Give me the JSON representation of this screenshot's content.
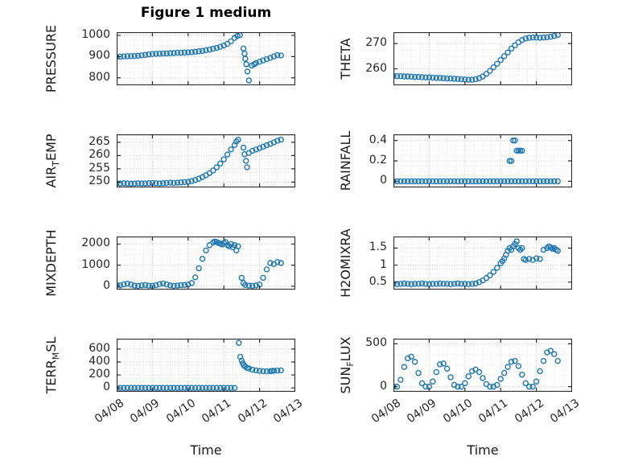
{
  "title": "Figure 1 medium",
  "accent_color": "#1f77b4",
  "x_axis": {
    "label": "Time",
    "lim": [
      0,
      5
    ],
    "ticks": [
      0,
      1,
      2,
      3,
      4,
      5
    ],
    "tick_labels": [
      "04/08",
      "04/09",
      "04/10",
      "04/11",
      "04/12",
      "04/13"
    ]
  },
  "chart_data": [
    {
      "type": "scatter",
      "name": "PRESSURE",
      "ylabel": {
        "pre": "PRESSURE",
        "sub": "",
        "post": ""
      },
      "ylim": [
        765,
        1015
      ],
      "yticks": [
        800,
        900,
        1000
      ],
      "ytick_labels": [
        "800",
        "900",
        "1000"
      ],
      "x": [
        0,
        0.1,
        0.2,
        0.3,
        0.4,
        0.5,
        0.6,
        0.7,
        0.8,
        0.9,
        1,
        1.1,
        1.2,
        1.3,
        1.4,
        1.5,
        1.6,
        1.7,
        1.8,
        1.9,
        2,
        2.1,
        2.2,
        2.3,
        2.4,
        2.5,
        2.6,
        2.7,
        2.8,
        2.9,
        3,
        3.1,
        3.2,
        3.3,
        3.38,
        3.45,
        3.55,
        3.58,
        3.6,
        3.63,
        3.66,
        3.7,
        3.78,
        3.85,
        3.9,
        4,
        4.1,
        4.2,
        4.3,
        4.4,
        4.5,
        4.6
      ],
      "y": [
        898,
        900,
        901,
        902,
        902,
        903,
        904,
        906,
        908,
        910,
        912,
        913,
        914,
        915,
        915,
        916,
        917,
        918,
        918,
        919,
        920,
        921,
        923,
        925,
        927,
        930,
        933,
        937,
        941,
        946,
        952,
        960,
        972,
        988,
        997,
        1001,
        938,
        914,
        890,
        864,
        830,
        788,
        858,
        864,
        870,
        876,
        882,
        888,
        894,
        901,
        907,
        905
      ]
    },
    {
      "type": "scatter",
      "name": "AIR_TEMP",
      "ylabel": {
        "pre": "AIR",
        "sub": "T",
        "post": "EMP"
      },
      "ylim": [
        248,
        268
      ],
      "yticks": [
        250,
        255,
        260,
        265
      ],
      "ytick_labels": [
        "250",
        "255",
        "260",
        "265"
      ],
      "x": [
        0,
        0.1,
        0.2,
        0.3,
        0.4,
        0.5,
        0.6,
        0.7,
        0.8,
        0.9,
        1,
        1.1,
        1.2,
        1.3,
        1.4,
        1.5,
        1.6,
        1.7,
        1.8,
        1.9,
        2,
        2.1,
        2.2,
        2.3,
        2.4,
        2.5,
        2.6,
        2.7,
        2.8,
        2.9,
        3,
        3.1,
        3.2,
        3.3,
        3.35,
        3.4,
        3.55,
        3.58,
        3.62,
        3.65,
        3.7,
        3.8,
        3.9,
        4,
        4.1,
        4.2,
        4.3,
        4.4,
        4.5,
        4.6
      ],
      "y": [
        249.6,
        249.5,
        249.6,
        249.5,
        249.4,
        249.5,
        249.6,
        249.5,
        249.5,
        249.6,
        249.7,
        249.6,
        249.5,
        249.6,
        249.7,
        249.8,
        249.7,
        249.8,
        249.9,
        250,
        250.1,
        250.4,
        250.8,
        251.3,
        251.9,
        252.6,
        253.4,
        254.4,
        255.6,
        257,
        258.6,
        260.4,
        262.3,
        264,
        265.3,
        266,
        263,
        260.5,
        258,
        255.6,
        261,
        261.8,
        262.3,
        262.8,
        263.3,
        263.9,
        264.4,
        265,
        265.6,
        266
      ]
    },
    {
      "type": "scatter",
      "name": "MIXDEPTH",
      "ylabel": {
        "pre": "MIXDEPTH",
        "sub": "",
        "post": ""
      },
      "ylim": [
        -160,
        2360
      ],
      "yticks": [
        0,
        1000,
        2000
      ],
      "ytick_labels": [
        "0",
        "1000",
        "2000"
      ],
      "x": [
        0,
        0.1,
        0.2,
        0.3,
        0.4,
        0.5,
        0.6,
        0.7,
        0.8,
        0.9,
        1,
        1.1,
        1.2,
        1.3,
        1.4,
        1.5,
        1.6,
        1.7,
        1.8,
        1.9,
        2,
        2.1,
        2.2,
        2.3,
        2.4,
        2.5,
        2.6,
        2.7,
        2.75,
        2.8,
        2.85,
        2.9,
        2.95,
        3,
        3.05,
        3.1,
        3.15,
        3.2,
        3.25,
        3.3,
        3.35,
        3.4,
        3.5,
        3.55,
        3.6,
        3.7,
        3.8,
        3.9,
        4,
        4.1,
        4.2,
        4.3,
        4.4,
        4.5,
        4.6
      ],
      "y": [
        60,
        40,
        90,
        120,
        80,
        30,
        20,
        40,
        60,
        30,
        20,
        50,
        100,
        130,
        90,
        40,
        20,
        30,
        50,
        60,
        80,
        150,
        420,
        850,
        1300,
        1700,
        1950,
        2080,
        2120,
        2100,
        2060,
        2020,
        1980,
        2050,
        2100,
        1950,
        1900,
        2000,
        1850,
        1950,
        1700,
        1900,
        400,
        150,
        60,
        30,
        20,
        40,
        80,
        400,
        800,
        1100,
        1050,
        1150,
        1100
      ]
    },
    {
      "type": "scatter",
      "name": "TERR_MSL",
      "ylabel": {
        "pre": "TERR",
        "sub": "M",
        "post": "SL"
      },
      "ylim": [
        -60,
        760
      ],
      "yticks": [
        0,
        200,
        400,
        600
      ],
      "ytick_labels": [
        "0",
        "200",
        "400",
        "600"
      ],
      "x": [
        0,
        0.1,
        0.2,
        0.3,
        0.4,
        0.5,
        0.6,
        0.7,
        0.8,
        0.9,
        1,
        1.1,
        1.2,
        1.3,
        1.4,
        1.5,
        1.6,
        1.7,
        1.8,
        1.9,
        2,
        2.1,
        2.2,
        2.3,
        2.4,
        2.5,
        2.6,
        2.7,
        2.8,
        2.9,
        3,
        3.1,
        3.2,
        3.3,
        3.42,
        3.46,
        3.5,
        3.53,
        3.56,
        3.6,
        3.65,
        3.7,
        3.8,
        3.9,
        4,
        4.1,
        4.2,
        4.3,
        4.35,
        4.4,
        4.5,
        4.6
      ],
      "y": [
        0,
        0,
        0,
        0,
        0,
        0,
        0,
        0,
        0,
        0,
        0,
        0,
        0,
        0,
        0,
        0,
        0,
        0,
        0,
        0,
        0,
        0,
        0,
        0,
        0,
        0,
        0,
        0,
        0,
        0,
        0,
        0,
        0,
        0,
        695,
        480,
        420,
        380,
        350,
        330,
        310,
        300,
        280,
        270,
        262,
        258,
        256,
        258,
        262,
        265,
        268,
        270
      ]
    },
    {
      "type": "scatter",
      "name": "THETA",
      "ylabel": {
        "pre": "THETA",
        "sub": "",
        "post": ""
      },
      "ylim": [
        253.5,
        274.5
      ],
      "yticks": [
        260,
        270
      ],
      "ytick_labels": [
        "260",
        "270"
      ],
      "x": [
        0,
        0.1,
        0.2,
        0.3,
        0.4,
        0.5,
        0.6,
        0.7,
        0.8,
        0.9,
        1,
        1.1,
        1.2,
        1.3,
        1.4,
        1.5,
        1.6,
        1.7,
        1.8,
        1.9,
        2,
        2.1,
        2.2,
        2.3,
        2.4,
        2.5,
        2.6,
        2.7,
        2.8,
        2.9,
        3,
        3.1,
        3.2,
        3.3,
        3.4,
        3.5,
        3.6,
        3.7,
        3.8,
        3.9,
        4,
        4.1,
        4.2,
        4.3,
        4.4,
        4.5,
        4.6
      ],
      "y": [
        257.2,
        257.1,
        257.1,
        257,
        257,
        256.9,
        256.8,
        256.8,
        256.7,
        256.6,
        256.6,
        256.5,
        256.4,
        256.4,
        256.3,
        256.2,
        256.2,
        256.1,
        256,
        255.9,
        255.8,
        255.7,
        255.7,
        255.9,
        256.3,
        257,
        258,
        259.2,
        260.6,
        262,
        263.5,
        265,
        266.5,
        268,
        269.3,
        270.5,
        271.4,
        272,
        272.3,
        272.4,
        272.4,
        272.3,
        272.4,
        272.5,
        272.7,
        273,
        273.4
      ]
    },
    {
      "type": "scatter",
      "name": "RAINFALL",
      "ylabel": {
        "pre": "RAINFALL",
        "sub": "",
        "post": ""
      },
      "ylim": [
        -0.06,
        0.46
      ],
      "yticks": [
        0,
        0.2,
        0.4
      ],
      "ytick_labels": [
        "0",
        "0.2",
        "0.4"
      ],
      "x": [
        0,
        0.1,
        0.2,
        0.3,
        0.4,
        0.5,
        0.6,
        0.7,
        0.8,
        0.9,
        1,
        1.1,
        1.2,
        1.3,
        1.4,
        1.5,
        1.6,
        1.7,
        1.8,
        1.9,
        2,
        2.1,
        2.2,
        2.3,
        2.4,
        2.5,
        2.6,
        2.7,
        2.8,
        2.9,
        3,
        3.1,
        3.2,
        3.3,
        3.4,
        3.5,
        3.6,
        3.7,
        3.8,
        3.9,
        4,
        4.1,
        4.2,
        4.3,
        4.4,
        4.5,
        4.6,
        3.25,
        3.3,
        3.35,
        3.4,
        3.45,
        3.5,
        3.55,
        3.6
      ],
      "y": [
        0,
        0,
        0,
        0,
        0,
        0,
        0,
        0,
        0,
        0,
        0,
        0,
        0,
        0,
        0,
        0,
        0,
        0,
        0,
        0,
        0,
        0,
        0,
        0,
        0,
        0,
        0,
        0,
        0,
        0,
        0,
        0,
        0,
        0,
        0,
        0,
        0,
        0,
        0,
        0,
        0,
        0,
        0,
        0,
        0,
        0,
        0,
        0.2,
        0.2,
        0.4,
        0.4,
        0.3,
        0.3,
        0.3,
        0.3
      ]
    },
    {
      "type": "scatter",
      "name": "H2OMIXRA",
      "ylabel": {
        "pre": "H2OMIXRA",
        "sub": "",
        "post": ""
      },
      "ylim": [
        0.28,
        1.84
      ],
      "yticks": [
        0.5,
        1,
        1.5
      ],
      "ytick_labels": [
        "0.5",
        "1",
        "1.5"
      ],
      "x": [
        0,
        0.1,
        0.2,
        0.3,
        0.4,
        0.5,
        0.6,
        0.7,
        0.8,
        0.9,
        1,
        1.1,
        1.2,
        1.3,
        1.4,
        1.5,
        1.6,
        1.7,
        1.8,
        1.9,
        2,
        2.1,
        2.2,
        2.3,
        2.4,
        2.5,
        2.6,
        2.7,
        2.8,
        2.9,
        3,
        3.05,
        3.1,
        3.15,
        3.2,
        3.25,
        3.3,
        3.35,
        3.4,
        3.45,
        3.5,
        3.55,
        3.6,
        3.65,
        3.7,
        3.8,
        3.9,
        4,
        4.1,
        4.2,
        4.3,
        4.35,
        4.4,
        4.45,
        4.5,
        4.55,
        4.6
      ],
      "y": [
        0.45,
        0.44,
        0.45,
        0.46,
        0.45,
        0.44,
        0.45,
        0.45,
        0.46,
        0.45,
        0.44,
        0.45,
        0.45,
        0.46,
        0.45,
        0.45,
        0.44,
        0.45,
        0.46,
        0.45,
        0.45,
        0.44,
        0.45,
        0.46,
        0.5,
        0.55,
        0.62,
        0.7,
        0.8,
        0.92,
        1.05,
        1.12,
        1.2,
        1.3,
        1.42,
        1.5,
        1.45,
        1.55,
        1.62,
        1.7,
        1.5,
        1.45,
        1.5,
        1.18,
        1.15,
        1.18,
        1.15,
        1.2,
        1.18,
        1.45,
        1.5,
        1.55,
        1.52,
        1.48,
        1.5,
        1.45,
        1.42
      ]
    },
    {
      "type": "scatter",
      "name": "SUN_FLUX",
      "ylabel": {
        "pre": "SUN",
        "sub": "F",
        "post": "LUX"
      },
      "ylim": [
        -60,
        560
      ],
      "yticks": [
        0,
        500
      ],
      "ytick_labels": [
        "0",
        "500"
      ],
      "x": [
        0,
        0.1,
        0.2,
        0.3,
        0.4,
        0.5,
        0.6,
        0.7,
        0.8,
        0.9,
        1,
        1.1,
        1.2,
        1.3,
        1.4,
        1.5,
        1.6,
        1.7,
        1.8,
        1.9,
        2,
        2.1,
        2.2,
        2.3,
        2.4,
        2.5,
        2.6,
        2.7,
        2.8,
        2.9,
        3,
        3.1,
        3.2,
        3.3,
        3.4,
        3.5,
        3.6,
        3.7,
        3.8,
        3.9,
        4,
        4.1,
        4.2,
        4.3,
        4.4,
        4.5,
        4.6
      ],
      "y": [
        0,
        0,
        80,
        230,
        330,
        350,
        290,
        160,
        40,
        0,
        0,
        60,
        170,
        260,
        270,
        210,
        110,
        20,
        0,
        0,
        40,
        120,
        180,
        200,
        170,
        100,
        30,
        0,
        0,
        20,
        90,
        160,
        230,
        290,
        300,
        240,
        140,
        40,
        0,
        0,
        60,
        180,
        300,
        400,
        420,
        380,
        300
      ]
    }
  ]
}
